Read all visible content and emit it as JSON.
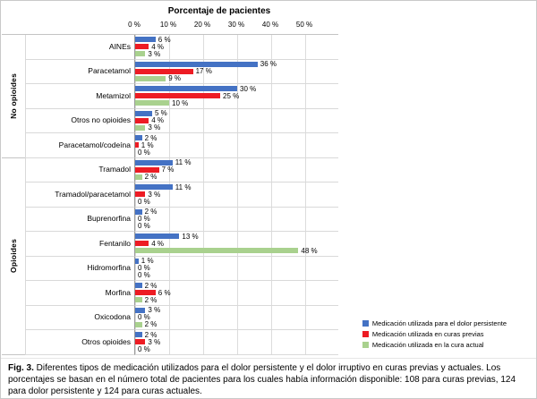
{
  "figure": {
    "caption_label": "Fig. 3.",
    "caption_text": " Diferentes tipos de medicación utilizados para el dolor persistente y el dolor irruptivo en curas previas y actuales. Los porcentajes se basan en el número total de pacientes para los cuales había información disponible: 108 para curas previas, 124 para dolor persistente y 124 para curas actuales."
  },
  "chart_data": {
    "type": "bar",
    "orientation": "horizontal",
    "title": "Porcentaje de pacientes",
    "xlabel": "Porcentaje de pacientes",
    "xlim": [
      0,
      50
    ],
    "grid": true,
    "legend_position": "bottom-right",
    "value_label_suffix": " %",
    "x_ticks": [
      0,
      10,
      20,
      30,
      40,
      50
    ],
    "x_tick_labels": [
      "0 %",
      "10 %",
      "20 %",
      "30 %",
      "40 %",
      "50 %"
    ],
    "groups": [
      {
        "label": "No opioides",
        "count": 5
      },
      {
        "label": "Opioides",
        "count": 8
      }
    ],
    "categories": [
      "AINEs",
      "Paracetamol",
      "Metamizol",
      "Otros no opioides",
      "Paracetamol/codeína",
      "Tramadol",
      "Tramadol/paracetamol",
      "Buprenorfina",
      "Fentanilo",
      "Hidromorfina",
      "Morfina",
      "Oxicodona",
      "Otros opioides"
    ],
    "series": [
      {
        "name": "Medicación utilizada para el dolor persistente",
        "color": "#4472c4",
        "values": [
          6,
          36,
          30,
          5,
          2,
          11,
          11,
          2,
          13,
          1,
          2,
          3,
          2
        ]
      },
      {
        "name": "Medicación utilizada en curas previas",
        "color": "#ed1c24",
        "values": [
          4,
          17,
          25,
          4,
          1,
          7,
          3,
          0,
          4,
          0,
          6,
          0,
          3
        ]
      },
      {
        "name": "Medicación utilizada en la cura actual",
        "color": "#a9d18e",
        "values": [
          3,
          9,
          10,
          3,
          0,
          2,
          0,
          0,
          48,
          0,
          2,
          2,
          0
        ]
      }
    ]
  }
}
